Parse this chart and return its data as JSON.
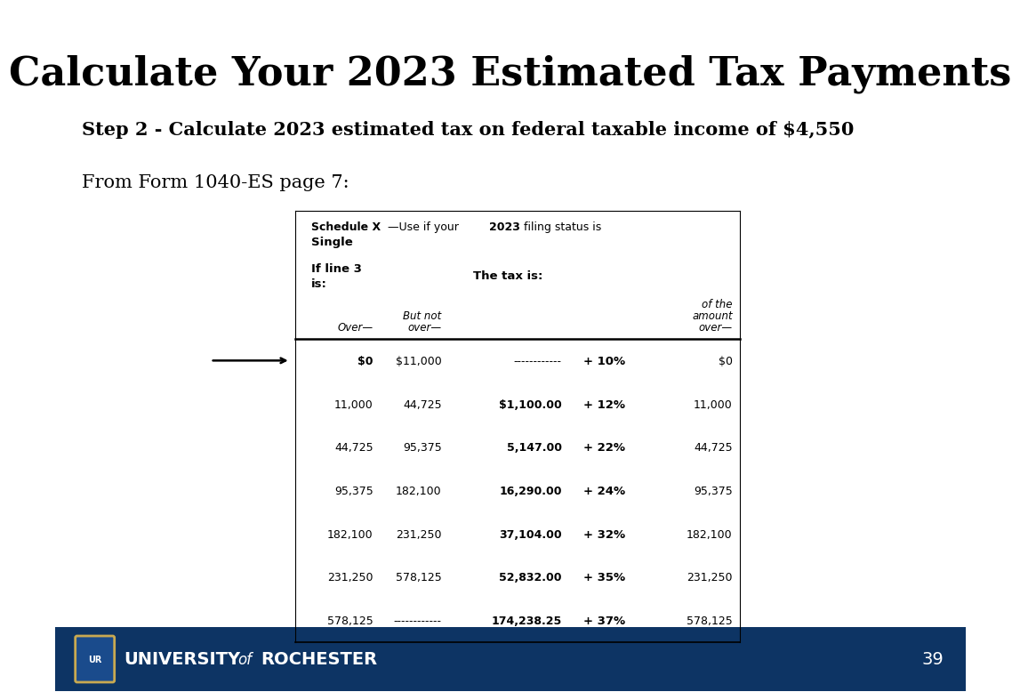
{
  "title": "Calculate Your 2023 Estimated Tax Payments",
  "step_text": "Step 2 - Calculate 2023 estimated tax on federal taxable income of $4,550",
  "from_text": "From Form 1040-ES page 7:",
  "table_rows": [
    [
      "$0",
      "$11,000",
      "------------",
      "+ 10%",
      "$0"
    ],
    [
      "11,000",
      "44,725",
      "$1,100.00",
      "+ 12%",
      "11,000"
    ],
    [
      "44,725",
      "95,375",
      "5,147.00",
      "+ 22%",
      "44,725"
    ],
    [
      "95,375",
      "182,100",
      "16,290.00",
      "+ 24%",
      "95,375"
    ],
    [
      "182,100",
      "231,250",
      "37,104.00",
      "+ 32%",
      "182,100"
    ],
    [
      "231,250",
      "578,125",
      "52,832.00",
      "+ 35%",
      "231,250"
    ],
    [
      "578,125",
      "------------",
      "174,238.25",
      "+ 37%",
      "578,125"
    ]
  ],
  "footer_bg": "#0d3464",
  "footer_page": "39",
  "bg_color": "#ffffff",
  "title_color": "#000000",
  "table_text_color": "#000000",
  "footer_text_color": "#ffffff"
}
